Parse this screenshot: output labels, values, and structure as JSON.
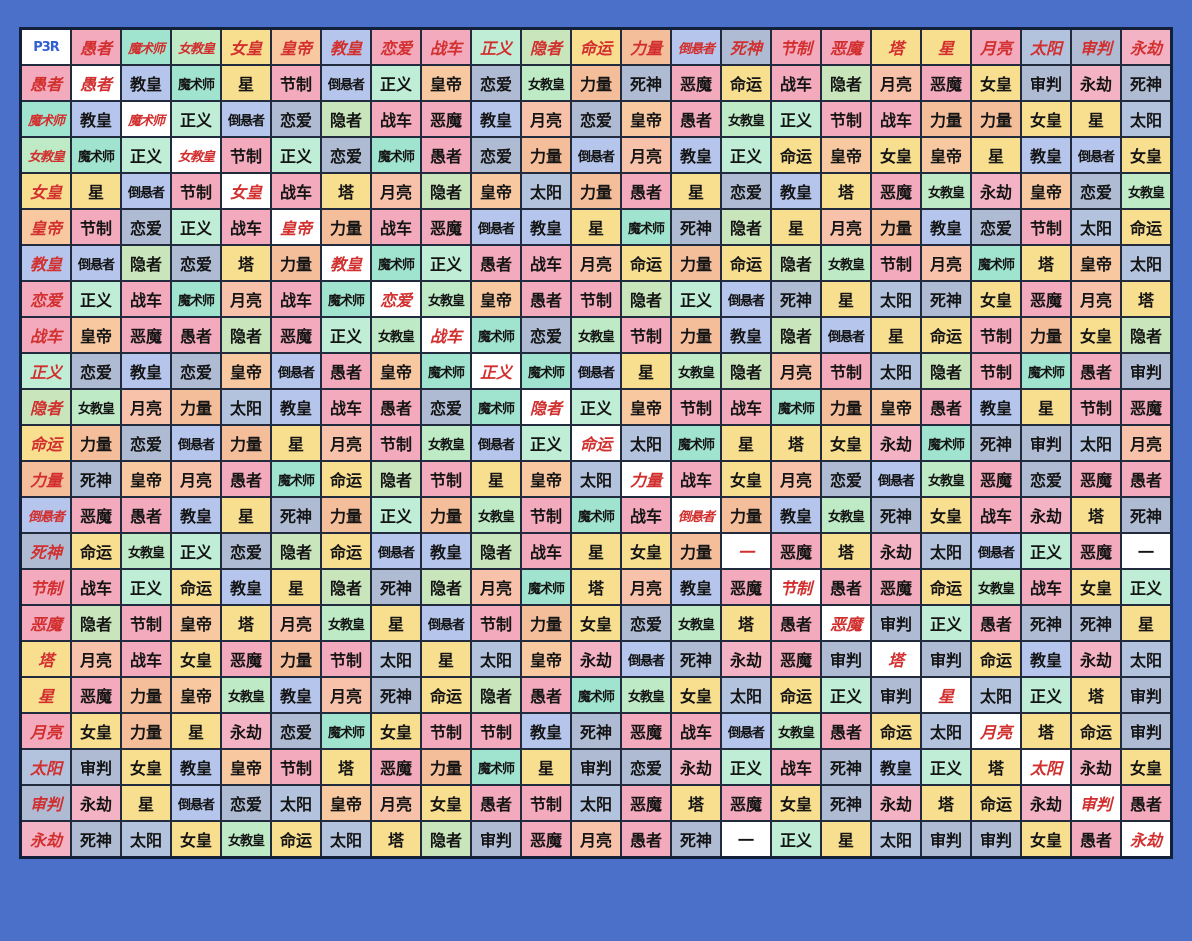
{
  "corner_label": "P3R",
  "none_symbol": "一",
  "colors": {
    "page_bg": "#4a70c9",
    "grid_line": "#222b3d",
    "table_frame": "#13203a",
    "header_text": "#d22f2f",
    "corner_text": "#2f5fd0",
    "cell_text": "#141414",
    "diagonal_bg": "#ffffff",
    "diagonal_text": "#d22f2f",
    "none_bg": "#ffffff"
  },
  "arcana_colors": {
    "愚者": "#f3aabd",
    "魔术师": "#a0e3ce",
    "女教皇": "#beeac6",
    "女皇": "#f8de8f",
    "皇帝": "#f8c9a1",
    "教皇": "#b6c5eb",
    "恋爱": "#aebbd3",
    "战车": "#f3aabd",
    "正义": "#bfedd6",
    "隐者": "#c8e5bb",
    "命运": "#f8de8f",
    "力量": "#f5be9b",
    "倒悬者": "#b6c5eb",
    "死神": "#aebbd3",
    "节制": "#f3aabd",
    "恶魔": "#f3aabd",
    "塔": "#f8de8f",
    "星": "#f8de8f",
    "月亮": "#f7c2a9",
    "太阳": "#b3c3de",
    "审判": "#aebbd3",
    "永劫": "#f4b3c4"
  },
  "header_color_overrides": {
    "恋爱": "#f3aabd",
    "月亮": "#f3aabd",
    "恶魔": "#f3aabd",
    "节制": "#f3aabd"
  },
  "chart_data": {
    "type": "table",
    "title": "P3R",
    "col_headers": [
      "愚者",
      "魔术师",
      "女教皇",
      "女皇",
      "皇帝",
      "教皇",
      "恋爱",
      "战车",
      "正义",
      "隐者",
      "命运",
      "力量",
      "倒悬者",
      "死神",
      "节制",
      "恶魔",
      "塔",
      "星",
      "月亮",
      "太阳",
      "审判",
      "永劫"
    ],
    "row_headers": [
      "愚者",
      "魔术师",
      "女教皇",
      "女皇",
      "皇帝",
      "教皇",
      "恋爱",
      "战车",
      "正义",
      "隐者",
      "命运",
      "力量",
      "倒悬者",
      "死神",
      "节制",
      "恶魔",
      "塔",
      "星",
      "月亮",
      "太阳",
      "审判",
      "永劫"
    ],
    "matrix": [
      [
        "愚者",
        "教皇",
        "魔术师",
        "星",
        "节制",
        "倒悬者",
        "正义",
        "皇帝",
        "恋爱",
        "女教皇",
        "力量",
        "死神",
        "恶魔",
        "命运",
        "战车",
        "隐者",
        "月亮",
        "恶魔",
        "女皇",
        "审判",
        "永劫",
        "死神"
      ],
      [
        "教皇",
        "魔术师",
        "正义",
        "倒悬者",
        "恋爱",
        "隐者",
        "战车",
        "恶魔",
        "教皇",
        "月亮",
        "恋爱",
        "皇帝",
        "愚者",
        "女教皇",
        "正义",
        "节制",
        "战车",
        "力量",
        "力量",
        "女皇",
        "星",
        "太阳"
      ],
      [
        "魔术师",
        "正义",
        "女教皇",
        "节制",
        "正义",
        "恋爱",
        "魔术师",
        "愚者",
        "恋爱",
        "力量",
        "倒悬者",
        "月亮",
        "教皇",
        "正义",
        "命运",
        "皇帝",
        "女皇",
        "皇帝",
        "星",
        "教皇",
        "倒悬者",
        "女皇"
      ],
      [
        "星",
        "倒悬者",
        "节制",
        "女皇",
        "战车",
        "塔",
        "月亮",
        "隐者",
        "皇帝",
        "太阳",
        "力量",
        "愚者",
        "星",
        "恋爱",
        "教皇",
        "塔",
        "恶魔",
        "女教皇",
        "永劫",
        "皇帝",
        "恋爱",
        "女教皇"
      ],
      [
        "节制",
        "恋爱",
        "正义",
        "战车",
        "皇帝",
        "力量",
        "战车",
        "恶魔",
        "倒悬者",
        "教皇",
        "星",
        "魔术师",
        "死神",
        "隐者",
        "星",
        "月亮",
        "力量",
        "教皇",
        "恋爱",
        "节制",
        "太阳",
        "命运"
      ],
      [
        "倒悬者",
        "隐者",
        "恋爱",
        "塔",
        "力量",
        "教皇",
        "魔术师",
        "正义",
        "愚者",
        "战车",
        "月亮",
        "命运",
        "力量",
        "命运",
        "隐者",
        "女教皇",
        "节制",
        "月亮",
        "魔术师",
        "塔",
        "皇帝",
        "太阳"
      ],
      [
        "正义",
        "战车",
        "魔术师",
        "月亮",
        "战车",
        "魔术师",
        "恋爱",
        "女教皇",
        "皇帝",
        "愚者",
        "节制",
        "隐者",
        "正义",
        "倒悬者",
        "死神",
        "星",
        "太阳",
        "死神",
        "女皇",
        "恶魔",
        "月亮",
        "塔"
      ],
      [
        "皇帝",
        "恶魔",
        "愚者",
        "隐者",
        "恶魔",
        "正义",
        "女教皇",
        "战车",
        "魔术师",
        "恋爱",
        "女教皇",
        "节制",
        "力量",
        "教皇",
        "隐者",
        "倒悬者",
        "星",
        "命运",
        "节制",
        "力量",
        "女皇",
        "隐者"
      ],
      [
        "恋爱",
        "教皇",
        "恋爱",
        "皇帝",
        "倒悬者",
        "愚者",
        "皇帝",
        "魔术师",
        "正义",
        "魔术师",
        "倒悬者",
        "星",
        "女教皇",
        "隐者",
        "月亮",
        "节制",
        "太阳",
        "隐者",
        "节制",
        "魔术师",
        "愚者",
        "审判"
      ],
      [
        "女教皇",
        "月亮",
        "力量",
        "太阳",
        "教皇",
        "战车",
        "愚者",
        "恋爱",
        "魔术师",
        "隐者",
        "正义",
        "皇帝",
        "节制",
        "战车",
        "魔术师",
        "力量",
        "皇帝",
        "愚者",
        "教皇",
        "星",
        "节制",
        "恶魔"
      ],
      [
        "力量",
        "恋爱",
        "倒悬者",
        "力量",
        "星",
        "月亮",
        "节制",
        "女教皇",
        "倒悬者",
        "正义",
        "命运",
        "太阳",
        "魔术师",
        "星",
        "塔",
        "女皇",
        "永劫",
        "魔术师",
        "死神",
        "审判",
        "太阳",
        "月亮"
      ],
      [
        "死神",
        "皇帝",
        "月亮",
        "愚者",
        "魔术师",
        "命运",
        "隐者",
        "节制",
        "星",
        "皇帝",
        "太阳",
        "力量",
        "战车",
        "女皇",
        "月亮",
        "恋爱",
        "倒悬者",
        "女教皇",
        "恶魔",
        "恋爱",
        "恶魔",
        "愚者"
      ],
      [
        "恶魔",
        "愚者",
        "教皇",
        "星",
        "死神",
        "力量",
        "正义",
        "力量",
        "女教皇",
        "节制",
        "魔术师",
        "战车",
        "倒悬者",
        "力量",
        "教皇",
        "女教皇",
        "死神",
        "女皇",
        "战车",
        "永劫",
        "塔",
        "死神"
      ],
      [
        "命运",
        "女教皇",
        "正义",
        "恋爱",
        "隐者",
        "命运",
        "倒悬者",
        "教皇",
        "隐者",
        "战车",
        "星",
        "女皇",
        "力量",
        "一",
        "恶魔",
        "塔",
        "永劫",
        "太阳",
        "倒悬者",
        "正义",
        "恶魔",
        "一"
      ],
      [
        "战车",
        "正义",
        "命运",
        "教皇",
        "星",
        "隐者",
        "死神",
        "隐者",
        "月亮",
        "魔术师",
        "塔",
        "月亮",
        "教皇",
        "恶魔",
        "节制",
        "愚者",
        "恶魔",
        "命运",
        "女教皇",
        "战车",
        "女皇",
        "正义"
      ],
      [
        "隐者",
        "节制",
        "皇帝",
        "塔",
        "月亮",
        "女教皇",
        "星",
        "倒悬者",
        "节制",
        "力量",
        "女皇",
        "恋爱",
        "女教皇",
        "塔",
        "愚者",
        "恶魔",
        "审判",
        "正义",
        "愚者",
        "死神",
        "死神",
        "星"
      ],
      [
        "月亮",
        "战车",
        "女皇",
        "恶魔",
        "力量",
        "节制",
        "太阳",
        "星",
        "太阳",
        "皇帝",
        "永劫",
        "倒悬者",
        "死神",
        "永劫",
        "恶魔",
        "审判",
        "塔",
        "审判",
        "命运",
        "教皇",
        "永劫",
        "太阳"
      ],
      [
        "恶魔",
        "力量",
        "皇帝",
        "女教皇",
        "教皇",
        "月亮",
        "死神",
        "命运",
        "隐者",
        "愚者",
        "魔术师",
        "女教皇",
        "女皇",
        "太阳",
        "命运",
        "正义",
        "审判",
        "星",
        "太阳",
        "正义",
        "塔",
        "审判"
      ],
      [
        "女皇",
        "力量",
        "星",
        "永劫",
        "恋爱",
        "魔术师",
        "女皇",
        "节制",
        "节制",
        "教皇",
        "死神",
        "恶魔",
        "战车",
        "倒悬者",
        "女教皇",
        "愚者",
        "命运",
        "太阳",
        "月亮",
        "塔",
        "命运",
        "审判"
      ],
      [
        "审判",
        "女皇",
        "教皇",
        "皇帝",
        "节制",
        "塔",
        "恶魔",
        "力量",
        "魔术师",
        "星",
        "审判",
        "恋爱",
        "永劫",
        "正义",
        "战车",
        "死神",
        "教皇",
        "正义",
        "塔",
        "太阳",
        "永劫",
        "女皇"
      ],
      [
        "永劫",
        "星",
        "倒悬者",
        "恋爱",
        "太阳",
        "皇帝",
        "月亮",
        "女皇",
        "愚者",
        "节制",
        "太阳",
        "恶魔",
        "塔",
        "恶魔",
        "女皇",
        "死神",
        "永劫",
        "塔",
        "命运",
        "永劫",
        "审判",
        "愚者"
      ],
      [
        "死神",
        "太阳",
        "女皇",
        "女教皇",
        "命运",
        "太阳",
        "塔",
        "隐者",
        "审判",
        "恶魔",
        "月亮",
        "愚者",
        "死神",
        "一",
        "正义",
        "星",
        "太阳",
        "审判",
        "审判",
        "女皇",
        "愚者",
        "永劫"
      ]
    ]
  }
}
